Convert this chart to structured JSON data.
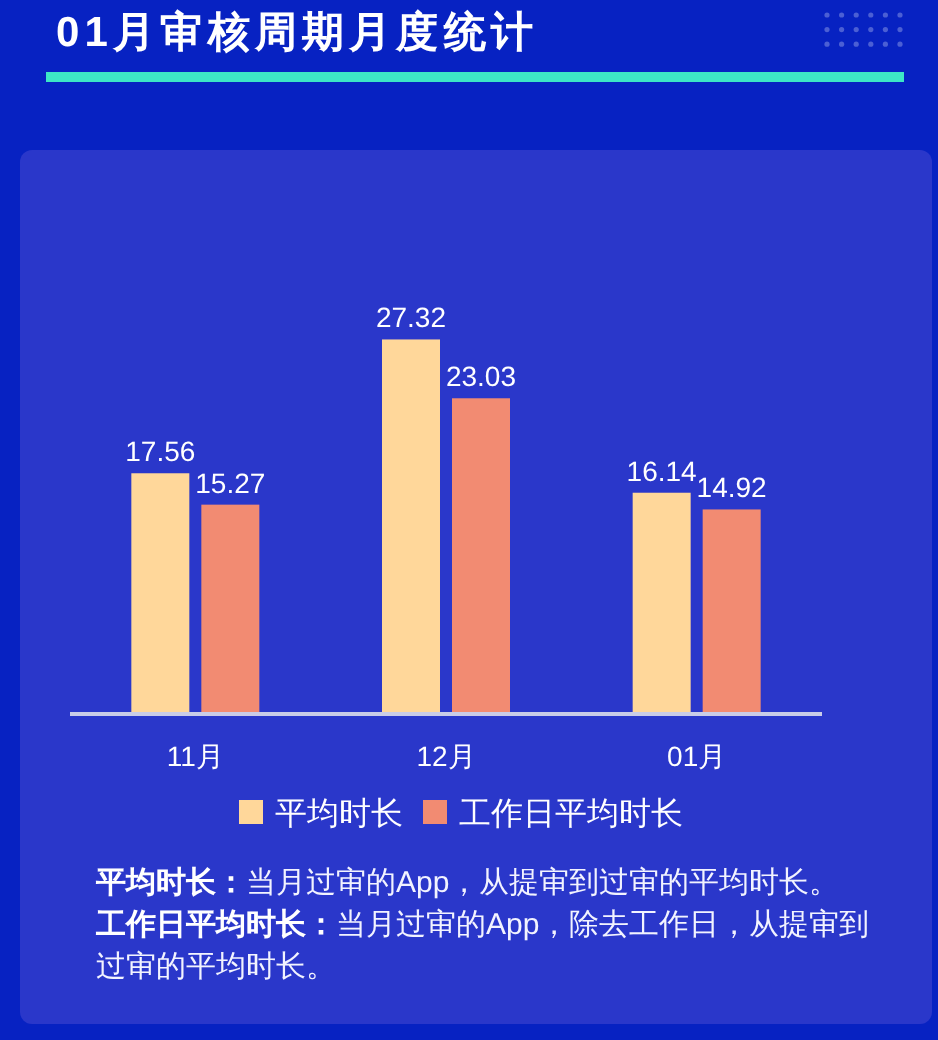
{
  "chart_data": {
    "type": "bar",
    "title": "01月审核周期月度统计",
    "categories": [
      "11月",
      "12月",
      "01月"
    ],
    "series": [
      {
        "name": "平均时长",
        "color": "#ffd79a",
        "values": [
          17.56,
          27.32,
          16.14
        ]
      },
      {
        "name": "工作日平均时长",
        "color": "#f28b72",
        "values": [
          15.27,
          23.03,
          14.92
        ]
      }
    ],
    "data_labels": true,
    "legend": "bottom",
    "annotations": [
      "平均时长：",
      "当月过审的App，从提审到过审的平均时长。",
      "工作日平均时长：",
      "当月过审的App，除去工作日，从提审到过审的平均时长。"
    ]
  }
}
